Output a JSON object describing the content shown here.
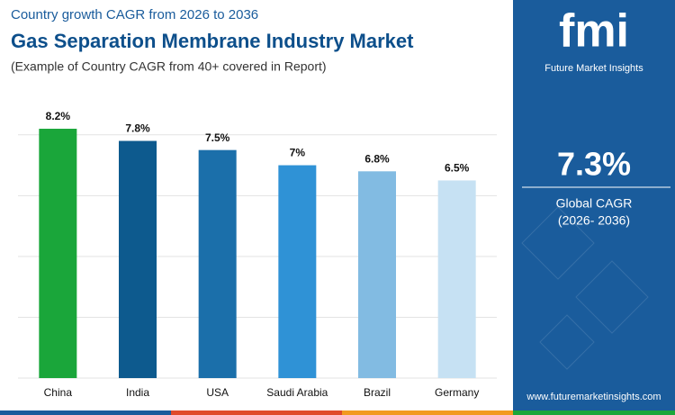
{
  "chart_data": {
    "type": "bar",
    "kicker": "Country growth CAGR from 2026 to 2036",
    "title": "Gas Separation Membrane Industry Market",
    "subtitle": "(Example of Country CAGR from 40+ covered in Report)",
    "categories": [
      "China",
      "India",
      "USA",
      "Saudi Arabia",
      "Brazil",
      "Germany"
    ],
    "values": [
      8.2,
      7.8,
      7.5,
      7,
      6.8,
      6.5
    ],
    "value_labels": [
      "8.2%",
      "7.8%",
      "7.5%",
      "7%",
      "6.8%",
      "6.5%"
    ],
    "colors": [
      "#1aa63a",
      "#0d5a8e",
      "#1b6faa",
      "#2f92d6",
      "#82bbe2",
      "#c6e1f3"
    ],
    "ylim": [
      0,
      9
    ],
    "yticks": [
      0,
      2,
      4,
      6,
      8
    ],
    "grid": true
  },
  "sidebar": {
    "logo": "fmi",
    "brand": "Future Market Insights",
    "global_value": "7.3%",
    "global_label": "Global CAGR",
    "global_period": "(2026- 2036)",
    "url": "www.futuremarketinsights.com"
  }
}
